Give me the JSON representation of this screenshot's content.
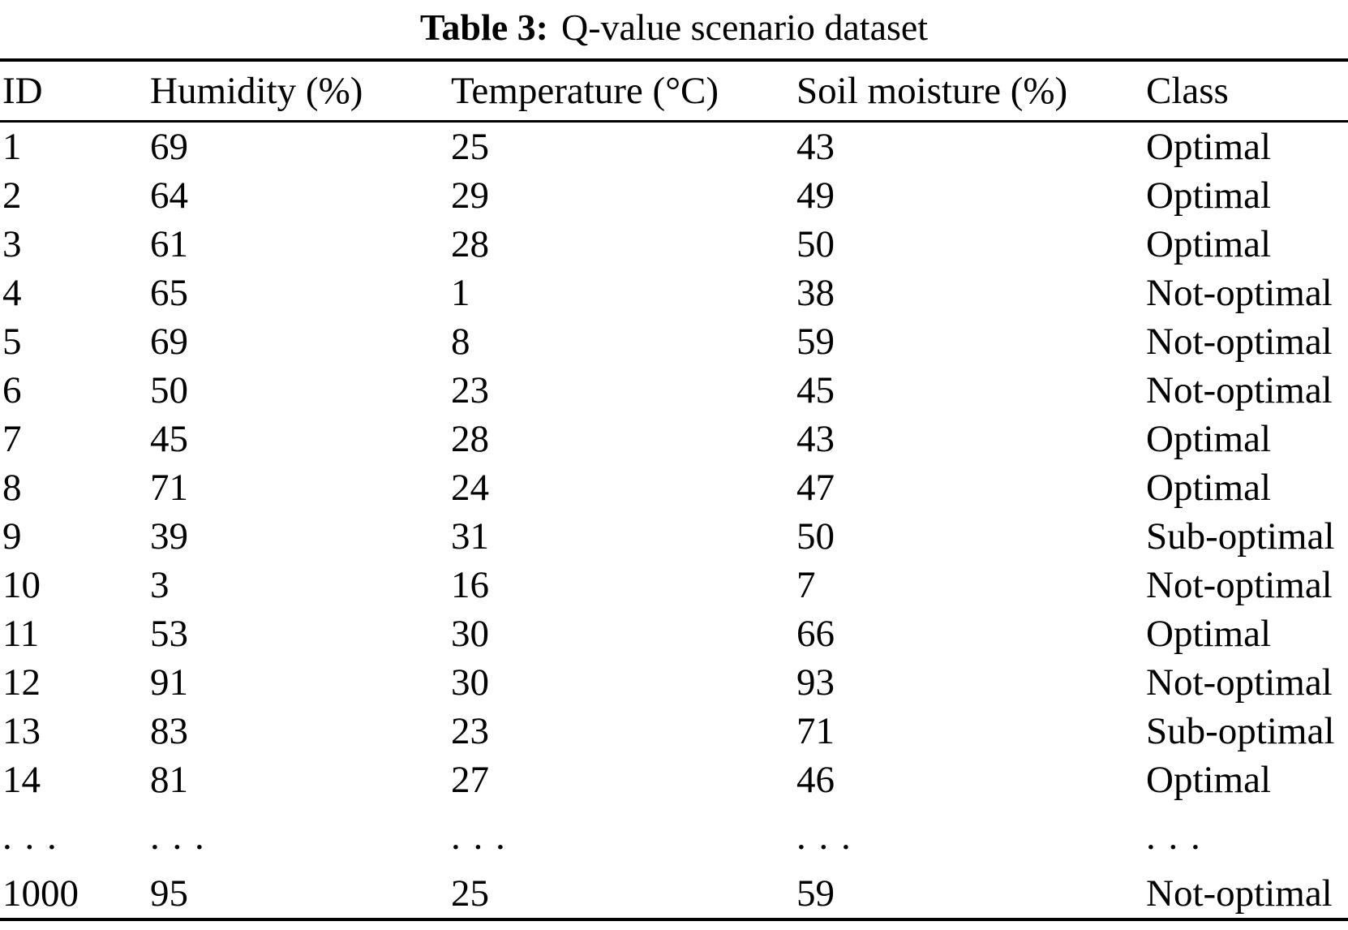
{
  "table": {
    "caption_label": "Table 3:",
    "caption_text": "Q-value scenario dataset",
    "columns": [
      "ID",
      "Humidity (%)",
      "Temperature (°C)",
      "Soil moisture (%)",
      "Class"
    ],
    "rows": [
      [
        "1",
        "69",
        "25",
        "43",
        "Optimal"
      ],
      [
        "2",
        "64",
        "29",
        "49",
        "Optimal"
      ],
      [
        "3",
        "61",
        "28",
        "50",
        "Optimal"
      ],
      [
        "4",
        "65",
        "1",
        "38",
        "Not-optimal"
      ],
      [
        "5",
        "69",
        "8",
        "59",
        "Not-optimal"
      ],
      [
        "6",
        "50",
        "23",
        "45",
        "Not-optimal"
      ],
      [
        "7",
        "45",
        "28",
        "43",
        "Optimal"
      ],
      [
        "8",
        "71",
        "24",
        "47",
        "Optimal"
      ],
      [
        "9",
        "39",
        "31",
        "50",
        "Sub-optimal"
      ],
      [
        "10",
        "3",
        "16",
        "7",
        "Not-optimal"
      ],
      [
        "11",
        "53",
        "30",
        "66",
        "Optimal"
      ],
      [
        "12",
        "91",
        "30",
        "93",
        "Not-optimal"
      ],
      [
        "13",
        "83",
        "23",
        "71",
        "Sub-optimal"
      ],
      [
        "14",
        "81",
        "27",
        "46",
        "Optimal"
      ],
      [
        ". . .",
        ". . .",
        ". . .",
        ". . .",
        ". . ."
      ],
      [
        "1000",
        "95",
        "25",
        "59",
        "Not-optimal"
      ]
    ],
    "ellipsis_marker": ". . ."
  },
  "colors": {
    "text": "#000000",
    "background": "#ffffff",
    "rule": "#000000"
  }
}
